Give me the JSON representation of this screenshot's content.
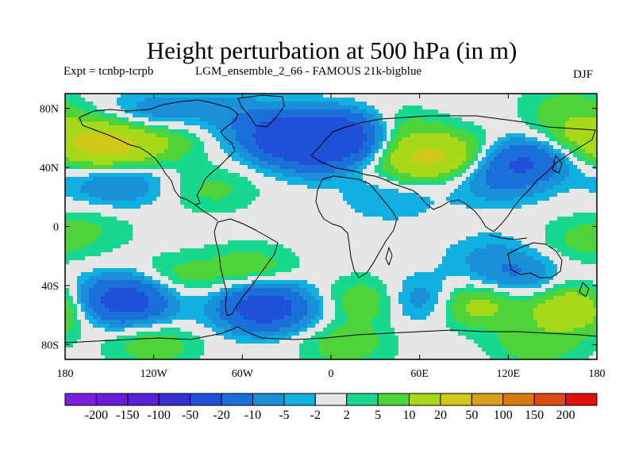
{
  "title": "Height perturbation at 500 hPa (in m)",
  "expt_label": "Expt = tcnbp-tcrpb",
  "run_label": "LGM_ensemble_2_66 - FAMOUS 21k-bigblue",
  "season": "DJF",
  "lat_ticks": [
    {
      "label": "80N",
      "lat": 80
    },
    {
      "label": "40N",
      "lat": 40
    },
    {
      "label": "0",
      "lat": 0
    },
    {
      "label": "40S",
      "lat": -40
    },
    {
      "label": "80S",
      "lat": -80
    }
  ],
  "lon_ticks": [
    {
      "label": "180",
      "lon": -180
    },
    {
      "label": "120W",
      "lon": -120
    },
    {
      "label": "60W",
      "lon": -60
    },
    {
      "label": "0",
      "lon": 0
    },
    {
      "label": "60E",
      "lon": 60
    },
    {
      "label": "120E",
      "lon": 120
    },
    {
      "label": "180",
      "lon": 180
    }
  ],
  "colorbar": {
    "boundaries": [
      "-200",
      "-150",
      "-100",
      "-50",
      "-20",
      "-10",
      "-5",
      "-2",
      "2",
      "5",
      "10",
      "20",
      "50",
      "100",
      "150",
      "200"
    ],
    "colors": [
      "#7a1fe0",
      "#6a1ad8",
      "#5a20d8",
      "#3a2ed0",
      "#2050d8",
      "#1a70d8",
      "#1a90d8",
      "#10b0e0",
      "#e6e6e6",
      "#18d890",
      "#4ed43a",
      "#a8d81a",
      "#d2c81a",
      "#d8a01a",
      "#d87a14",
      "#dc4a14",
      "#e01010"
    ]
  },
  "chart_data": {
    "type": "heatmap",
    "title": "Height perturbation at 500 hPa (in m)",
    "subtitle": "LGM_ensemble_2_66 - FAMOUS 21k-bigblue",
    "season": "DJF",
    "xlim": [
      -180,
      180
    ],
    "ylim": [
      -90,
      90
    ],
    "projection": "cylindrical equidistant",
    "units": "m",
    "anomaly_centers": [
      {
        "lon": -150,
        "lat": 50,
        "amp": 14
      },
      {
        "lon": -155,
        "lat": 60,
        "amp": 12
      },
      {
        "lon": -115,
        "lat": 60,
        "amp": 10
      },
      {
        "lon": -145,
        "lat": 30,
        "amp": -12
      },
      {
        "lon": -120,
        "lat": 75,
        "amp": -10
      },
      {
        "lon": -70,
        "lat": 78,
        "amp": -6
      },
      {
        "lon": -30,
        "lat": 62,
        "amp": -28
      },
      {
        "lon": 10,
        "lat": 62,
        "amp": -30
      },
      {
        "lon": -12,
        "lat": 50,
        "amp": -16
      },
      {
        "lon": 60,
        "lat": 45,
        "amp": 18
      },
      {
        "lon": 40,
        "lat": 65,
        "amp": 10
      },
      {
        "lon": 90,
        "lat": 50,
        "amp": 10
      },
      {
        "lon": 130,
        "lat": 45,
        "amp": -22
      },
      {
        "lon": 110,
        "lat": 30,
        "amp": -8
      },
      {
        "lon": 165,
        "lat": 60,
        "amp": 10
      },
      {
        "lon": 160,
        "lat": 82,
        "amp": 6
      },
      {
        "lon": -80,
        "lat": 25,
        "amp": 6
      },
      {
        "lon": 40,
        "lat": 20,
        "amp": -5
      },
      {
        "lon": -140,
        "lat": -50,
        "amp": -30
      },
      {
        "lon": -45,
        "lat": -55,
        "amp": -30
      },
      {
        "lon": -55,
        "lat": -28,
        "amp": 8
      },
      {
        "lon": 30,
        "lat": -50,
        "amp": 12
      },
      {
        "lon": 60,
        "lat": -50,
        "amp": -15
      },
      {
        "lon": 95,
        "lat": -52,
        "amp": 16
      },
      {
        "lon": 125,
        "lat": -35,
        "amp": -10
      },
      {
        "lon": 165,
        "lat": -55,
        "amp": 18
      },
      {
        "lon": -105,
        "lat": -35,
        "amp": 7
      },
      {
        "lon": 110,
        "lat": -20,
        "amp": -5
      },
      {
        "lon": 170,
        "lat": -10,
        "amp": 6
      },
      {
        "lon": 10,
        "lat": -80,
        "amp": 8
      },
      {
        "lon": 140,
        "lat": -80,
        "amp": 8
      },
      {
        "lon": -120,
        "lat": -80,
        "amp": 8
      },
      {
        "lon": -160,
        "lat": 0,
        "amp": 4
      }
    ]
  }
}
